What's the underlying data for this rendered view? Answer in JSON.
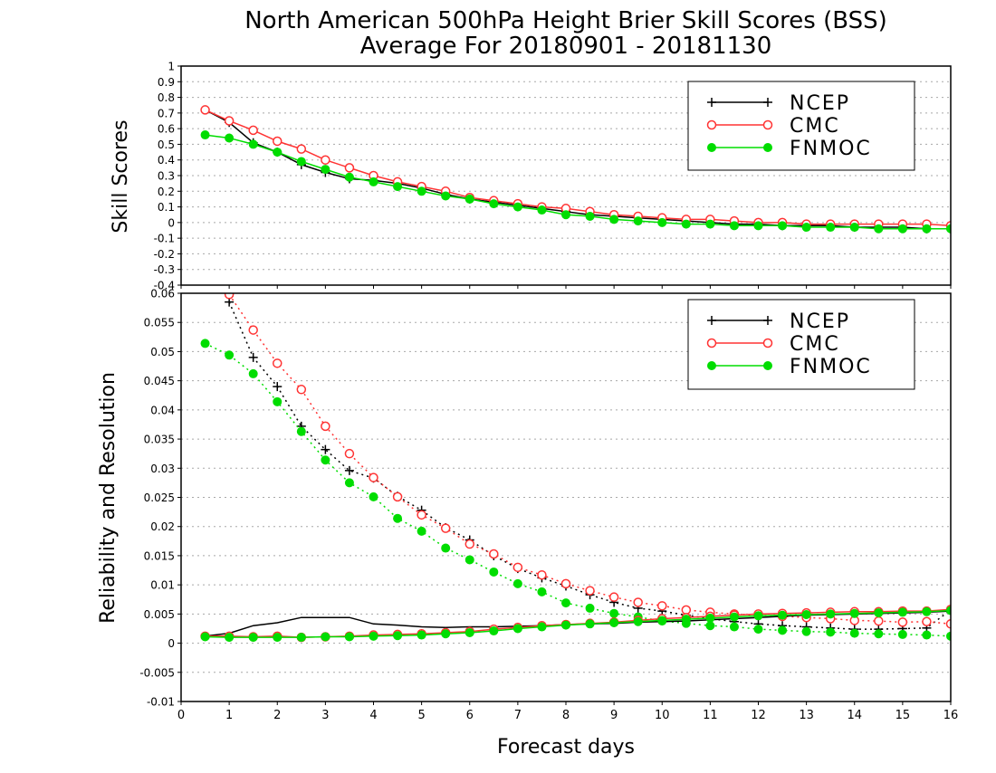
{
  "title_line1": "North American 500hPa Height Brier Skill Scores (BSS)",
  "title_line2": "Average For 20180901 - 20181130",
  "xlabel": "Forecast days",
  "x_ticks": [
    "0",
    "1",
    "2",
    "3",
    "4",
    "5",
    "6",
    "7",
    "8",
    "9",
    "10",
    "11",
    "12",
    "13",
    "14",
    "15",
    "16"
  ],
  "colors": {
    "ncep": "#000000",
    "cmc": "#ff3333",
    "fnmoc": "#00dd00"
  },
  "chart_data": [
    {
      "type": "line",
      "ylabel": "Skill Scores",
      "xlim": [
        0,
        16
      ],
      "ylim": [
        -0.4,
        1
      ],
      "y_ticks": [
        "-0.4",
        "-0.3",
        "-0.2",
        "-0.1",
        "0",
        "0.1",
        "0.2",
        "0.3",
        "0.4",
        "0.5",
        "0.6",
        "0.7",
        "0.8",
        "0.9",
        "1"
      ],
      "grid": true,
      "legend_position": "top-right",
      "legend": [
        "NCEP",
        "CMC",
        "FNMOC"
      ],
      "x": [
        0.5,
        1,
        1.5,
        2,
        2.5,
        3,
        3.5,
        4,
        4.5,
        5,
        5.5,
        6,
        6.5,
        7,
        7.5,
        8,
        8.5,
        9,
        9.5,
        10,
        10.5,
        11,
        11.5,
        12,
        12.5,
        13,
        13.5,
        14,
        14.5,
        15,
        15.5,
        16
      ],
      "series": [
        {
          "name": "NCEP",
          "style": "solid",
          "marker": "plus",
          "values": [
            0.72,
            0.64,
            0.51,
            0.45,
            0.37,
            0.32,
            0.28,
            0.27,
            0.25,
            0.22,
            0.18,
            0.15,
            0.13,
            0.11,
            0.09,
            0.07,
            0.05,
            0.04,
            0.03,
            0.02,
            0.01,
            0.0,
            -0.01,
            -0.01,
            -0.02,
            -0.02,
            -0.02,
            -0.03,
            -0.03,
            -0.03,
            -0.04,
            -0.04
          ]
        },
        {
          "name": "CMC",
          "style": "solid",
          "marker": "open-circle",
          "values": [
            0.72,
            0.65,
            0.59,
            0.52,
            0.47,
            0.4,
            0.35,
            0.3,
            0.26,
            0.23,
            0.2,
            0.16,
            0.14,
            0.12,
            0.1,
            0.09,
            0.07,
            0.05,
            0.04,
            0.03,
            0.02,
            0.02,
            0.01,
            0.0,
            0.0,
            -0.01,
            -0.01,
            -0.01,
            -0.01,
            -0.01,
            -0.01,
            -0.02
          ]
        },
        {
          "name": "FNMOC",
          "style": "solid",
          "marker": "filled-circle",
          "values": [
            0.56,
            0.54,
            0.5,
            0.45,
            0.39,
            0.34,
            0.29,
            0.26,
            0.23,
            0.2,
            0.17,
            0.15,
            0.12,
            0.1,
            0.08,
            0.05,
            0.04,
            0.02,
            0.01,
            0.0,
            -0.01,
            -0.01,
            -0.02,
            -0.02,
            -0.02,
            -0.03,
            -0.03,
            -0.03,
            -0.04,
            -0.04,
            -0.04,
            -0.04
          ]
        }
      ]
    },
    {
      "type": "line",
      "ylabel": "Reliability and Resolution",
      "xlim": [
        0,
        16
      ],
      "ylim": [
        -0.01,
        0.06
      ],
      "y_ticks": [
        "-0.01",
        "-0.005",
        "0",
        "0.005",
        "0.01",
        "0.015",
        "0.02",
        "0.025",
        "0.03",
        "0.035",
        "0.04",
        "0.045",
        "0.05",
        "0.055",
        "0.06"
      ],
      "grid": true,
      "legend_position": "top-right",
      "legend": [
        "NCEP",
        "CMC",
        "FNMOC"
      ],
      "x": [
        0.5,
        1,
        1.5,
        2,
        2.5,
        3,
        3.5,
        4,
        4.5,
        5,
        5.5,
        6,
        6.5,
        7,
        7.5,
        8,
        8.5,
        9,
        9.5,
        10,
        10.5,
        11,
        11.5,
        12,
        12.5,
        13,
        13.5,
        14,
        14.5,
        15,
        15.5,
        16
      ],
      "series": [
        {
          "name": "NCEP",
          "role": "resolution",
          "style": "dotted",
          "marker": "plus",
          "values": [
            null,
            0.0585,
            0.049,
            0.044,
            0.0372,
            0.0332,
            0.0296,
            0.0283,
            0.0252,
            0.0228,
            0.0198,
            0.0177,
            0.015,
            0.0128,
            0.0112,
            0.0098,
            0.0083,
            0.007,
            0.006,
            0.0055,
            0.0048,
            0.0042,
            0.0037,
            0.0033,
            0.003,
            0.0028,
            0.0026,
            0.0024,
            0.0024,
            0.0025,
            0.0026,
            0.0057
          ]
        },
        {
          "name": "CMC",
          "role": "resolution",
          "style": "dotted",
          "marker": "open-circle",
          "values": [
            null,
            0.0598,
            0.0537,
            0.048,
            0.0435,
            0.0372,
            0.0325,
            0.0284,
            0.0251,
            0.022,
            0.0197,
            0.017,
            0.0153,
            0.013,
            0.0117,
            0.0102,
            0.009,
            0.0079,
            0.007,
            0.0064,
            0.0057,
            0.0053,
            0.005,
            0.0048,
            0.0046,
            0.0044,
            0.0042,
            0.0039,
            0.0038,
            0.0036,
            0.0037,
            0.0033
          ]
        },
        {
          "name": "FNMOC",
          "role": "resolution",
          "style": "dotted",
          "marker": "filled-circle",
          "values": [
            0.0514,
            0.0494,
            0.0462,
            0.0414,
            0.0363,
            0.0314,
            0.0275,
            0.0251,
            0.0214,
            0.0192,
            0.0163,
            0.0143,
            0.0122,
            0.0102,
            0.0088,
            0.0069,
            0.006,
            0.0051,
            0.0045,
            0.0038,
            0.0034,
            0.003,
            0.0028,
            0.0024,
            0.0022,
            0.002,
            0.0019,
            0.0017,
            0.0016,
            0.0015,
            0.0014,
            0.0012
          ]
        },
        {
          "name": "NCEP",
          "role": "reliability",
          "style": "solid",
          "marker": "none",
          "values": [
            0.0012,
            0.0017,
            0.003,
            0.0035,
            0.0044,
            0.0044,
            0.0044,
            0.0033,
            0.0031,
            0.0028,
            0.0027,
            0.0028,
            0.0028,
            0.0029,
            0.003,
            0.0032,
            0.0033,
            0.0034,
            0.0036,
            0.0037,
            0.0038,
            0.004,
            0.0042,
            0.0044,
            0.0046,
            0.0048,
            0.0049,
            0.005,
            0.0051,
            0.0052,
            0.0053,
            0.0055
          ]
        },
        {
          "name": "CMC",
          "role": "reliability",
          "style": "solid",
          "marker": "open-circle",
          "values": [
            0.0012,
            0.0012,
            0.0011,
            0.0012,
            0.001,
            0.0011,
            0.0012,
            0.0014,
            0.0015,
            0.0016,
            0.0018,
            0.002,
            0.0024,
            0.0027,
            0.003,
            0.0032,
            0.0034,
            0.0036,
            0.0039,
            0.0042,
            0.0044,
            0.0046,
            0.0048,
            0.005,
            0.0051,
            0.0052,
            0.0053,
            0.0054,
            0.0054,
            0.0055,
            0.0055,
            0.0058
          ]
        },
        {
          "name": "FNMOC",
          "role": "reliability",
          "style": "solid",
          "marker": "filled-circle",
          "values": [
            0.0011,
            0.001,
            0.001,
            0.001,
            0.001,
            0.0011,
            0.0011,
            0.0012,
            0.0013,
            0.0014,
            0.0016,
            0.0018,
            0.0021,
            0.0025,
            0.0028,
            0.0031,
            0.0033,
            0.0035,
            0.0037,
            0.0039,
            0.0041,
            0.0043,
            0.0045,
            0.0047,
            0.0048,
            0.0049,
            0.005,
            0.0051,
            0.0052,
            0.0053,
            0.0054,
            0.0056
          ]
        }
      ]
    }
  ]
}
